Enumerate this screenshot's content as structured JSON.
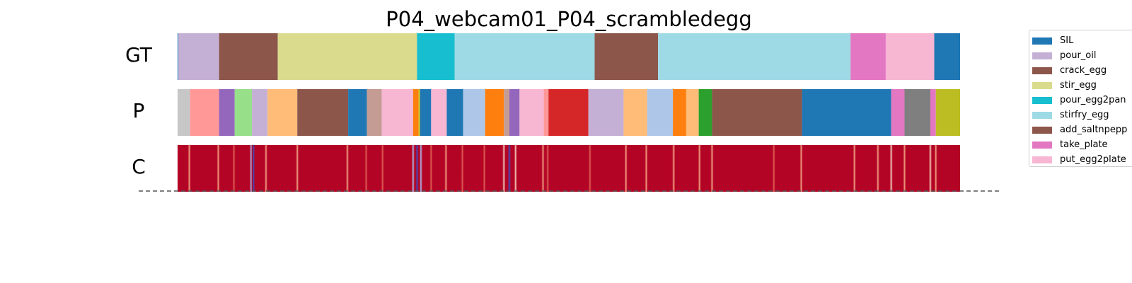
{
  "chart_data": {
    "type": "segmentation",
    "title": "P04_webcam01_P04_scrambledegg",
    "x_range": [
      0,
      1
    ],
    "rows": [
      {
        "label": "GT",
        "segments": [
          {
            "start": 0.0,
            "end": 0.001,
            "color": "#1f77b4"
          },
          {
            "start": 0.001,
            "end": 0.053,
            "color": "#c5b0d5"
          },
          {
            "start": 0.053,
            "end": 0.128,
            "color": "#8c564b"
          },
          {
            "start": 0.128,
            "end": 0.306,
            "color": "#dbdb8d"
          },
          {
            "start": 0.306,
            "end": 0.354,
            "color": "#17becf"
          },
          {
            "start": 0.354,
            "end": 0.533,
            "color": "#9edae5"
          },
          {
            "start": 0.533,
            "end": 0.614,
            "color": "#8c564b"
          },
          {
            "start": 0.614,
            "end": 0.86,
            "color": "#9edae5"
          },
          {
            "start": 0.86,
            "end": 0.905,
            "color": "#e377c2"
          },
          {
            "start": 0.905,
            "end": 0.967,
            "color": "#f7b6d2"
          },
          {
            "start": 0.967,
            "end": 1.0,
            "color": "#1f77b4"
          }
        ]
      },
      {
        "label": "P",
        "segments": [
          {
            "start": 0.0,
            "end": 0.016,
            "color": "#c7c7c7"
          },
          {
            "start": 0.016,
            "end": 0.053,
            "color": "#ff9896"
          },
          {
            "start": 0.053,
            "end": 0.073,
            "color": "#9467bd"
          },
          {
            "start": 0.073,
            "end": 0.095,
            "color": "#98df8a"
          },
          {
            "start": 0.095,
            "end": 0.115,
            "color": "#c5b0d5"
          },
          {
            "start": 0.115,
            "end": 0.153,
            "color": "#ffbb78"
          },
          {
            "start": 0.153,
            "end": 0.218,
            "color": "#8c564b"
          },
          {
            "start": 0.218,
            "end": 0.242,
            "color": "#1f77b4"
          },
          {
            "start": 0.242,
            "end": 0.261,
            "color": "#c49c94"
          },
          {
            "start": 0.261,
            "end": 0.301,
            "color": "#f7b6d2"
          },
          {
            "start": 0.301,
            "end": 0.308,
            "color": "#ff7f0e"
          },
          {
            "start": 0.308,
            "end": 0.31,
            "color": "#bcbd22"
          },
          {
            "start": 0.31,
            "end": 0.324,
            "color": "#1f77b4"
          },
          {
            "start": 0.324,
            "end": 0.344,
            "color": "#f7b6d2"
          },
          {
            "start": 0.344,
            "end": 0.365,
            "color": "#1f77b4"
          },
          {
            "start": 0.365,
            "end": 0.393,
            "color": "#aec7e8"
          },
          {
            "start": 0.393,
            "end": 0.417,
            "color": "#ff7f0e"
          },
          {
            "start": 0.417,
            "end": 0.424,
            "color": "#c49c94"
          },
          {
            "start": 0.424,
            "end": 0.437,
            "color": "#9467bd"
          },
          {
            "start": 0.437,
            "end": 0.468,
            "color": "#f7b6d2"
          },
          {
            "start": 0.468,
            "end": 0.474,
            "color": "#ff9896"
          },
          {
            "start": 0.474,
            "end": 0.525,
            "color": "#d62728"
          },
          {
            "start": 0.525,
            "end": 0.57,
            "color": "#c5b0d5"
          },
          {
            "start": 0.57,
            "end": 0.6,
            "color": "#ffbb78"
          },
          {
            "start": 0.6,
            "end": 0.633,
            "color": "#aec7e8"
          },
          {
            "start": 0.633,
            "end": 0.65,
            "color": "#ff7f0e"
          },
          {
            "start": 0.65,
            "end": 0.666,
            "color": "#ffbb78"
          },
          {
            "start": 0.666,
            "end": 0.683,
            "color": "#2ca02c"
          },
          {
            "start": 0.683,
            "end": 0.798,
            "color": "#8c564b"
          },
          {
            "start": 0.798,
            "end": 0.912,
            "color": "#1f77b4"
          },
          {
            "start": 0.912,
            "end": 0.929,
            "color": "#e377c2"
          },
          {
            "start": 0.929,
            "end": 0.962,
            "color": "#7f7f7f"
          },
          {
            "start": 0.962,
            "end": 0.969,
            "color": "#e377c2"
          },
          {
            "start": 0.969,
            "end": 1.0,
            "color": "#bcbd22"
          }
        ]
      }
    ],
    "confidence_row": {
      "label": "C",
      "base_color": "#b40426",
      "dips": [
        {
          "at": 0.015,
          "level": 0.55
        },
        {
          "at": 0.052,
          "level": 0.6
        },
        {
          "at": 0.072,
          "level": 0.7
        },
        {
          "at": 0.094,
          "level": 0.3
        },
        {
          "at": 0.097,
          "level": 0.1
        },
        {
          "at": 0.113,
          "level": 0.6
        },
        {
          "at": 0.153,
          "level": 0.55
        },
        {
          "at": 0.217,
          "level": 0.6
        },
        {
          "at": 0.241,
          "level": 0.7
        },
        {
          "at": 0.262,
          "level": 0.7
        },
        {
          "at": 0.301,
          "level": 0.2
        },
        {
          "at": 0.306,
          "level": 0.05
        },
        {
          "at": 0.311,
          "level": 0.15
        },
        {
          "at": 0.324,
          "level": 0.7
        },
        {
          "at": 0.343,
          "level": 0.6
        },
        {
          "at": 0.364,
          "level": 0.7
        },
        {
          "at": 0.392,
          "level": 0.7
        },
        {
          "at": 0.417,
          "level": 0.45
        },
        {
          "at": 0.424,
          "level": 0.05
        },
        {
          "at": 0.432,
          "level": 0.45
        },
        {
          "at": 0.467,
          "level": 0.55
        },
        {
          "at": 0.473,
          "level": 0.7
        },
        {
          "at": 0.527,
          "level": 0.7
        },
        {
          "at": 0.573,
          "level": 0.6
        },
        {
          "at": 0.599,
          "level": 0.6
        },
        {
          "at": 0.634,
          "level": 0.6
        },
        {
          "at": 0.667,
          "level": 0.5
        },
        {
          "at": 0.683,
          "level": 0.6
        },
        {
          "at": 0.762,
          "level": 0.7
        },
        {
          "at": 0.797,
          "level": 0.6
        },
        {
          "at": 0.865,
          "level": 0.55
        },
        {
          "at": 0.895,
          "level": 0.5
        },
        {
          "at": 0.912,
          "level": 0.45
        },
        {
          "at": 0.929,
          "level": 0.5
        },
        {
          "at": 0.962,
          "level": 0.35
        },
        {
          "at": 0.969,
          "level": 0.6
        }
      ]
    },
    "legend": {
      "placement": "upper-right-outside",
      "entries": [
        {
          "label": "SIL",
          "color": "#1f77b4"
        },
        {
          "label": "pour_oil",
          "color": "#c5b0d5"
        },
        {
          "label": "crack_egg",
          "color": "#8c564b"
        },
        {
          "label": "stir_egg",
          "color": "#dbdb8d"
        },
        {
          "label": "pour_egg2pan",
          "color": "#17becf"
        },
        {
          "label": "stirfry_egg",
          "color": "#9edae5"
        },
        {
          "label": "add_saltnpepp",
          "color": "#8c564b"
        },
        {
          "label": "take_plate",
          "color": "#e377c2"
        },
        {
          "label": "put_egg2plate",
          "color": "#f7b6d2"
        }
      ]
    },
    "baseline": {
      "style": "dashed",
      "color": "#555555"
    }
  }
}
